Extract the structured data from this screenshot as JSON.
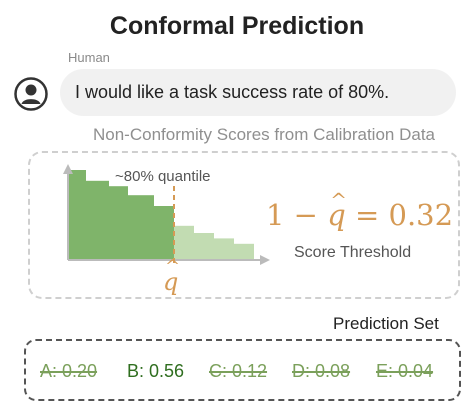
{
  "title": "Conformal Prediction",
  "human_label": "Human",
  "user_message": "I would like a task success rate of 80%.",
  "nonconformity_title": "Non-Conformity Scores from Calibration Data",
  "quantile_label": "~80% quantile",
  "formula": {
    "prefix": "1 − ",
    "q": "q",
    "hat": "^",
    "suffix": " = 0.32"
  },
  "score_threshold_label": "Score Threshold",
  "q_hat": {
    "q": "q",
    "hat": "^"
  },
  "prediction_set_title": "Prediction Set",
  "options": [
    {
      "text": "A: 0.20",
      "in_set": false
    },
    {
      "text": "B: 0.56",
      "in_set": true
    },
    {
      "text": "C: 0.12",
      "in_set": false
    },
    {
      "text": "D: 0.08",
      "in_set": false
    },
    {
      "text": "E: 0.04",
      "in_set": false
    }
  ],
  "colors": {
    "accent_orange": "#d59a55",
    "below_quantile": "#7fb46a",
    "above_quantile": "#c2dcb2",
    "kept_option": "#2f6e1f",
    "rejected_option": "#7ba05b"
  },
  "chart_data": {
    "type": "bar",
    "description_values": [
      1.0,
      0.88,
      0.82,
      0.72,
      0.6,
      0.38,
      0.3,
      0.24,
      0.18
    ],
    "quantile_index": 5,
    "quantile_fraction": 0.8
  }
}
